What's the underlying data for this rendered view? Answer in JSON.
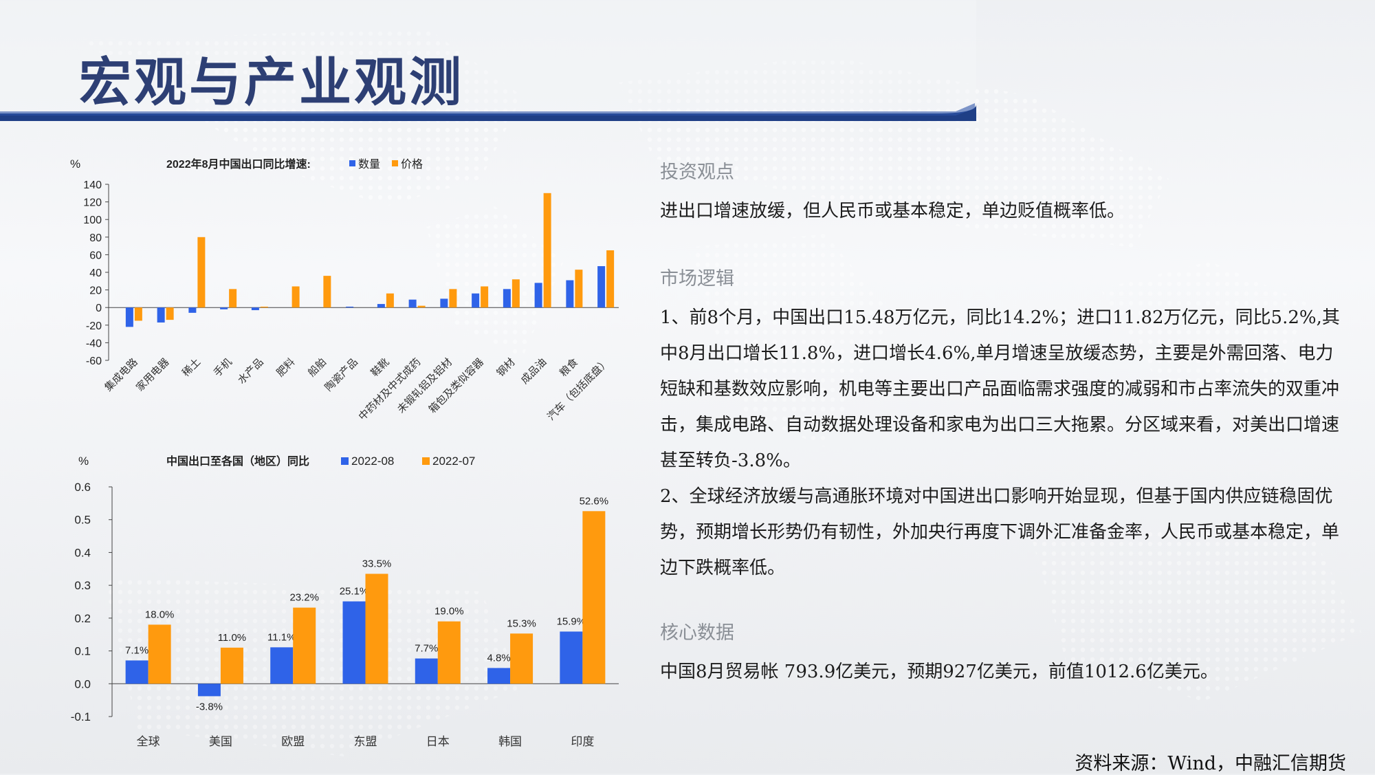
{
  "page": {
    "title": "宏观与产业观测",
    "source": "资料来源：Wind，中融汇信期货"
  },
  "right": {
    "s1_title": "投资观点",
    "s1_text": "进出口增速放缓，但人民币或基本稳定，单边贬值概率低。",
    "s2_title": "市场逻辑",
    "s2_text": "1、前8个月，中国出口15.48万亿元，同比14.2%；进口11.82万亿元，同比5.2%,其中8月出口增长11.8%，进口增长4.6%,单月增速呈放缓态势，主要是外需回落、电力短缺和基数效应影响，机电等主要出口产品面临需求强度的减弱和市占率流失的双重冲击，集成电路、自动数据处理设备和家电为出口三大拖累。分区域来看，对美出口增速甚至转负-3.8%。",
    "s2_text2": "2、全球经济放缓与高通胀环境对中国进出口影响开始显现，但基于国内供应链稳固优势，预期增长形势仍有韧性，外加央行再度下调外汇准备金率，人民币或基本稳定，单边下跌概率低。",
    "s3_title": "核心数据",
    "s3_text": "中国8月贸易帐 793.9亿美元，预期927亿美元，前值1012.6亿美元。"
  },
  "colors": {
    "blue": "#2f63e8",
    "orange": "#ff9a0e",
    "title": "#2d3f74",
    "band": "#1f3f86"
  },
  "chart_data": [
    {
      "type": "bar",
      "title": "2022年8月中国出口同比增速:",
      "ylabel": "%",
      "ylim": [
        -60,
        140
      ],
      "yticks": [
        140,
        120,
        100,
        80,
        60,
        40,
        20,
        0,
        -20,
        -40,
        -60
      ],
      "legend": "top",
      "categories": [
        "集成电路",
        "家用电器",
        "稀土",
        "手机",
        "水产品",
        "肥料",
        "船舶",
        "陶瓷产品",
        "鞋靴",
        "中药材及中式成药",
        "未锻轧铝及铝材",
        "箱包及类似容器",
        "钢材",
        "成品油",
        "粮食",
        "汽车（包括底盘）"
      ],
      "series": [
        {
          "name": "数量",
          "values": [
            -22,
            -17,
            -6,
            -2,
            -3,
            0,
            0,
            1,
            4,
            9,
            10,
            16,
            21,
            28,
            31,
            47
          ]
        },
        {
          "name": "价格",
          "values": [
            -15,
            -14,
            80,
            21,
            1,
            24,
            36,
            0,
            16,
            2,
            21,
            24,
            32,
            130,
            43,
            65
          ]
        }
      ]
    },
    {
      "type": "bar",
      "title": "中国出口至各国（地区）同比",
      "ylabel": "%",
      "ylim": [
        -0.1,
        0.6
      ],
      "yticks": [
        "0.6",
        "0.5",
        "0.4",
        "0.3",
        "0.2",
        "0.1",
        "0.0",
        "-0.1"
      ],
      "legend": "top",
      "categories": [
        "全球",
        "美国",
        "欧盟",
        "东盟",
        "日本",
        "韩国",
        "印度"
      ],
      "series": [
        {
          "name": "2022-08",
          "values": [
            0.071,
            -0.038,
            0.111,
            0.251,
            0.077,
            0.048,
            0.159
          ],
          "labels": [
            "7.1%",
            "-3.8%",
            "11.1%",
            "25.1%",
            "7.7%",
            "4.8%",
            "15.9%"
          ]
        },
        {
          "name": "2022-07",
          "values": [
            0.18,
            0.11,
            0.232,
            0.335,
            0.19,
            0.153,
            0.526
          ],
          "labels": [
            "18.0%",
            "11.0%",
            "23.2%",
            "33.5%",
            "19.0%",
            "15.3%",
            "52.6%"
          ]
        }
      ]
    }
  ]
}
